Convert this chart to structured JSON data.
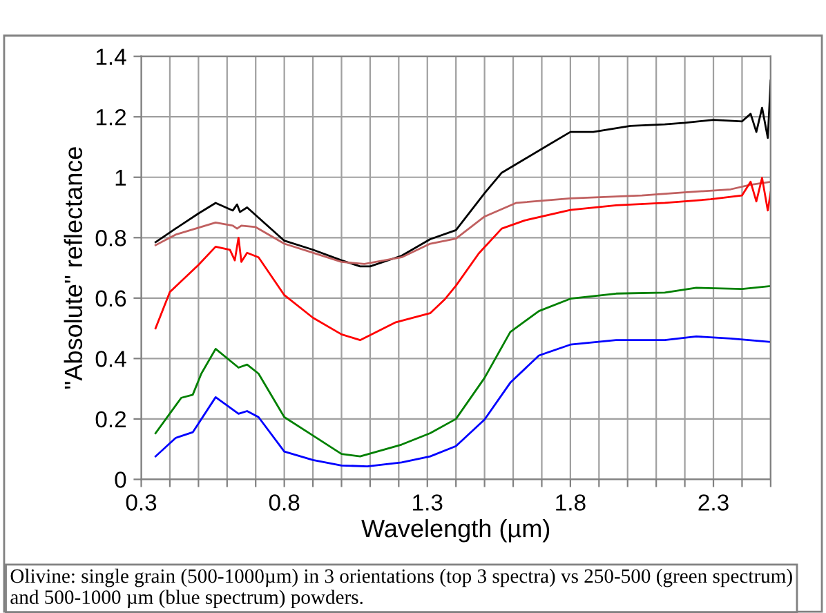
{
  "chart_data": {
    "type": "line",
    "xlabel": "Wavelength (µm)",
    "ylabel": "\"Absolute\" reflectance",
    "annotations": [
      "Olivine: single grain (500-1000µm) in 3 orientations (top 3 spectra) vs 250-500 (green spectrum) and 500-1000 µm (blue spectrum) powders."
    ],
    "xlim": [
      0.3,
      2.5
    ],
    "ylim": [
      0,
      1.4
    ],
    "xticks": [
      0.3,
      {
        "value": 0.4,
        "label": null
      },
      {
        "value": 0.5,
        "label": null
      },
      {
        "value": 0.6,
        "label": null
      },
      {
        "value": 0.7,
        "label": null
      },
      0.8,
      {
        "value": 0.9,
        "label": null
      },
      {
        "value": 1.0,
        "label": null
      },
      {
        "value": 1.1,
        "label": null
      },
      {
        "value": 1.2,
        "label": null
      },
      1.3,
      {
        "value": 1.4,
        "label": null
      },
      {
        "value": 1.5,
        "label": null
      },
      {
        "value": 1.6,
        "label": null
      },
      {
        "value": 1.7,
        "label": null
      },
      1.8,
      {
        "value": 1.9,
        "label": null
      },
      {
        "value": 2.0,
        "label": null
      },
      {
        "value": 2.1,
        "label": null
      },
      {
        "value": 2.2,
        "label": null
      },
      2.3,
      {
        "value": 2.4,
        "label": null
      },
      {
        "value": 2.5,
        "label": null
      }
    ],
    "yticks": [
      0,
      0.2,
      0.4,
      0.6,
      0.8,
      1,
      1.2,
      1.4
    ],
    "grid": true,
    "legend": false,
    "marker": "none",
    "line_style": "solid",
    "series": [
      {
        "color": "#000000",
        "x": [
          0.35,
          0.42,
          0.5,
          0.56,
          0.62,
          0.635,
          0.645,
          0.67,
          0.8,
          0.9,
          1.0,
          1.065,
          1.1,
          1.21,
          1.31,
          1.4,
          1.5,
          1.56,
          1.64,
          1.72,
          1.8,
          1.88,
          2.01,
          2.13,
          2.2,
          2.3,
          2.4,
          2.43,
          2.45,
          2.47,
          2.49,
          2.5
        ],
        "values": [
          0.785,
          0.83,
          0.88,
          0.915,
          0.89,
          0.91,
          0.885,
          0.9,
          0.79,
          0.76,
          0.725,
          0.705,
          0.705,
          0.74,
          0.795,
          0.825,
          0.947,
          1.015,
          1.06,
          1.105,
          1.15,
          1.15,
          1.17,
          1.175,
          1.18,
          1.19,
          1.185,
          1.21,
          1.15,
          1.23,
          1.13,
          1.32
        ]
      },
      {
        "color": "#c06060",
        "x": [
          0.35,
          0.42,
          0.56,
          0.62,
          0.635,
          0.65,
          0.7,
          0.8,
          0.9,
          1.0,
          1.08,
          1.21,
          1.31,
          1.4,
          1.5,
          1.61,
          1.8,
          2.05,
          2.2,
          2.36,
          2.43,
          2.5
        ],
        "values": [
          0.775,
          0.81,
          0.85,
          0.84,
          0.83,
          0.84,
          0.835,
          0.78,
          0.75,
          0.72,
          0.713,
          0.735,
          0.78,
          0.797,
          0.87,
          0.915,
          0.93,
          0.94,
          0.95,
          0.96,
          0.975,
          0.985
        ]
      },
      {
        "color": "#ff0000",
        "x": [
          0.35,
          0.4,
          0.5,
          0.56,
          0.61,
          0.627,
          0.64,
          0.65,
          0.67,
          0.71,
          0.8,
          0.9,
          1.0,
          1.065,
          1.19,
          1.31,
          1.36,
          1.4,
          1.48,
          1.56,
          1.64,
          1.8,
          1.96,
          2.13,
          2.29,
          2.4,
          2.43,
          2.45,
          2.47,
          2.49,
          2.5
        ],
        "values": [
          0.5,
          0.62,
          0.71,
          0.77,
          0.76,
          0.725,
          0.8,
          0.72,
          0.75,
          0.735,
          0.61,
          0.535,
          0.48,
          0.461,
          0.52,
          0.55,
          0.595,
          0.641,
          0.748,
          0.83,
          0.857,
          0.892,
          0.907,
          0.915,
          0.927,
          0.94,
          0.985,
          0.92,
          0.998,
          0.89,
          0.95
        ]
      },
      {
        "color": "#008000",
        "x": [
          0.35,
          0.42,
          0.44,
          0.48,
          0.51,
          0.56,
          0.64,
          0.67,
          0.71,
          0.8,
          0.9,
          1.0,
          1.065,
          1.21,
          1.31,
          1.4,
          1.5,
          1.59,
          1.69,
          1.8,
          1.96,
          2.13,
          2.24,
          2.4,
          2.5
        ],
        "values": [
          0.153,
          0.244,
          0.27,
          0.28,
          0.35,
          0.432,
          0.37,
          0.38,
          0.35,
          0.206,
          0.145,
          0.084,
          0.076,
          0.115,
          0.153,
          0.2,
          0.336,
          0.488,
          0.557,
          0.598,
          0.615,
          0.618,
          0.634,
          0.63,
          0.64
        ]
      },
      {
        "color": "#0000ff",
        "x": [
          0.35,
          0.42,
          0.48,
          0.56,
          0.64,
          0.67,
          0.71,
          0.8,
          0.9,
          1.0,
          1.09,
          1.21,
          1.31,
          1.4,
          1.5,
          1.59,
          1.69,
          1.8,
          1.96,
          2.13,
          2.24,
          2.36,
          2.5
        ],
        "values": [
          0.076,
          0.137,
          0.156,
          0.272,
          0.217,
          0.226,
          0.206,
          0.092,
          0.064,
          0.046,
          0.043,
          0.056,
          0.076,
          0.11,
          0.198,
          0.32,
          0.41,
          0.446,
          0.461,
          0.461,
          0.473,
          0.466,
          0.455
        ]
      }
    ]
  }
}
